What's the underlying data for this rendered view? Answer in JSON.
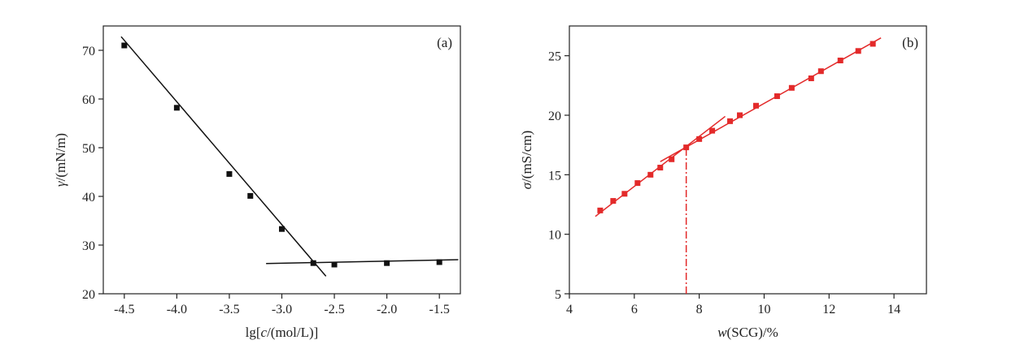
{
  "chart_data": [
    {
      "panel_label": "(a)",
      "type": "scatter",
      "xlabel_parts": [
        "lg[",
        "c",
        "/(mol/L)]"
      ],
      "ylabel_parts": [
        "γ",
        "/(mN/m)"
      ],
      "xlim": [
        -4.7,
        -1.3
      ],
      "ylim": [
        20,
        75
      ],
      "xticks": [
        -4.5,
        -4.0,
        -3.5,
        -3.0,
        -2.5,
        -2.0,
        -1.5
      ],
      "xtick_labels": [
        "-4.5",
        "-4.0",
        "-3.5",
        "-3.0",
        "-2.5",
        "-2.0",
        "-1.5"
      ],
      "yticks": [
        20,
        30,
        40,
        50,
        60,
        70
      ],
      "ytick_labels": [
        "20",
        "30",
        "40",
        "50",
        "60",
        "70"
      ],
      "color": "#111111",
      "points": [
        {
          "x": -4.5,
          "y": 71.0
        },
        {
          "x": -4.0,
          "y": 58.2
        },
        {
          "x": -3.5,
          "y": 44.6
        },
        {
          "x": -3.3,
          "y": 40.1
        },
        {
          "x": -3.0,
          "y": 33.3
        },
        {
          "x": -2.7,
          "y": 26.3
        },
        {
          "x": -2.5,
          "y": 26.0
        },
        {
          "x": -2.0,
          "y": 26.3
        },
        {
          "x": -1.5,
          "y": 26.5
        }
      ],
      "fit_lines": [
        {
          "x1": -4.53,
          "y1": 72.8,
          "x2": -2.58,
          "y2": 23.6
        },
        {
          "x1": -3.15,
          "y1": 26.2,
          "x2": -1.32,
          "y2": 27.0
        }
      ]
    },
    {
      "panel_label": "(b)",
      "type": "scatter",
      "xlabel_parts": [
        "w",
        "(SCG)/%"
      ],
      "ylabel_parts": [
        "σ",
        "/(mS/cm)"
      ],
      "xlim": [
        4,
        15
      ],
      "ylim": [
        5,
        27.5
      ],
      "xticks": [
        4,
        6,
        8,
        10,
        12,
        14
      ],
      "xtick_labels": [
        "4",
        "6",
        "8",
        "10",
        "12",
        "14"
      ],
      "yticks": [
        5,
        10,
        15,
        20,
        25
      ],
      "ytick_labels": [
        "5",
        "10",
        "15",
        "20",
        "25"
      ],
      "color": "#e32a2a",
      "points": [
        {
          "x": 4.95,
          "y": 12.0
        },
        {
          "x": 5.35,
          "y": 12.8
        },
        {
          "x": 5.7,
          "y": 13.4
        },
        {
          "x": 6.1,
          "y": 14.3
        },
        {
          "x": 6.5,
          "y": 15.0
        },
        {
          "x": 6.8,
          "y": 15.6
        },
        {
          "x": 7.15,
          "y": 16.3
        },
        {
          "x": 7.6,
          "y": 17.3
        },
        {
          "x": 8.0,
          "y": 18.0
        },
        {
          "x": 8.4,
          "y": 18.7
        },
        {
          "x": 8.95,
          "y": 19.5
        },
        {
          "x": 9.25,
          "y": 20.0
        },
        {
          "x": 9.75,
          "y": 20.8
        },
        {
          "x": 10.4,
          "y": 21.6
        },
        {
          "x": 10.85,
          "y": 22.3
        },
        {
          "x": 11.45,
          "y": 23.1
        },
        {
          "x": 11.75,
          "y": 23.7
        },
        {
          "x": 12.35,
          "y": 24.6
        },
        {
          "x": 12.9,
          "y": 25.4
        },
        {
          "x": 13.35,
          "y": 26.0
        }
      ],
      "fit_lines": [
        {
          "x1": 4.8,
          "y1": 11.5,
          "x2": 8.8,
          "y2": 19.9
        },
        {
          "x1": 6.8,
          "y1": 16.1,
          "x2": 13.6,
          "y2": 26.5
        }
      ],
      "marker_line": {
        "x": 7.6,
        "y_from": 5,
        "y_to": 17.3
      }
    }
  ]
}
